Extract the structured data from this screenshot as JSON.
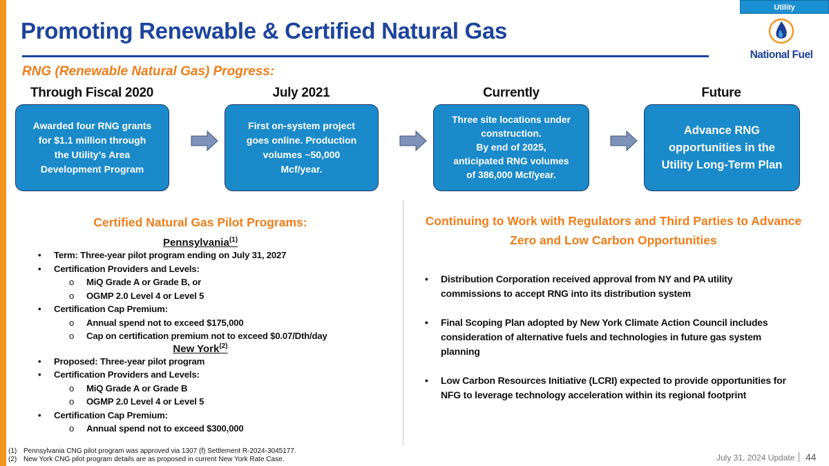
{
  "header": {
    "badge": "Utility",
    "logo_text": "National Fuel",
    "title": "Promoting Renewable & Certified Natural Gas",
    "subtitle": "RNG (Renewable Natural Gas) Progress:"
  },
  "timeline": [
    {
      "heading": "Through Fiscal 2020",
      "text": "Awarded four RNG grants\nfor $1.1 million through\nthe Utility’s Area\nDevelopment Program"
    },
    {
      "heading": "July 2021",
      "text": "First on-system project\ngoes online. Production\nvolumes ~50,000\nMcf/year."
    },
    {
      "heading": "Currently",
      "text": "Three site locations under\nconstruction.\nBy end of 2025,\nanticipated RNG volumes\nof 386,000 Mcf/year."
    },
    {
      "heading": "Future",
      "text": "Advance RNG\nopportunities in the\nUtility Long-Term Plan"
    }
  ],
  "left": {
    "heading": "Certified Natural Gas Pilot Programs:",
    "pa": {
      "title": "Pennsylvania",
      "note": "(1)",
      "items": [
        {
          "level": 1,
          "text": "Term: Three-year pilot program ending on July 31, 2027"
        },
        {
          "level": 1,
          "text": "Certification Providers and Levels:"
        },
        {
          "level": 2,
          "text": "MiQ Grade A or Grade B, or"
        },
        {
          "level": 2,
          "text": "OGMP 2.0 Level 4 or Level 5"
        },
        {
          "level": 1,
          "text": "Certification Cap Premium:"
        },
        {
          "level": 2,
          "text": "Annual spend not to exceed $175,000"
        },
        {
          "level": 2,
          "text": "Cap on certification premium not to exceed $0.07/Dth/day"
        }
      ]
    },
    "ny": {
      "title": "New York",
      "note": "(2)",
      "items": [
        {
          "level": 1,
          "text": "Proposed: Three-year pilot program"
        },
        {
          "level": 1,
          "text": "Certification Providers and Levels:"
        },
        {
          "level": 2,
          "text": "MiQ Grade A or Grade B"
        },
        {
          "level": 2,
          "text": "OGMP 2.0 Level 4 or Level 5"
        },
        {
          "level": 1,
          "text": "Certification Cap Premium:"
        },
        {
          "level": 2,
          "text": "Annual spend not to exceed $300,000"
        }
      ]
    }
  },
  "right": {
    "heading": "Continuing to Work with Regulators and Third Parties to Advance Zero and Low Carbon Opportunities",
    "items": [
      "Distribution Corporation received approval from NY and PA utility commissions to accept RNG into its distribution system",
      "Final Scoping Plan adopted by New York Climate Action Council includes consideration of alternative fuels and technologies in future gas system planning",
      "Low Carbon Resources Initiative (LCRI) expected to provide opportunities for NFG to leverage technology acceleration within its regional footprint"
    ]
  },
  "footnotes": [
    {
      "n": "(1)",
      "text": "Pennsylvania CNG pilot program was approved via 1307 (f) Settlement R-2024-3045177."
    },
    {
      "n": "(2)",
      "text": "New York CNG pilot program details are as proposed in current New York Rate Case."
    }
  ],
  "footer": {
    "date": "July 31, 2024 Update",
    "page": "44"
  },
  "colors": {
    "brand_blue": "#1c449c",
    "box_blue": "#1a8acb",
    "accent_orange": "#f07d1a"
  }
}
